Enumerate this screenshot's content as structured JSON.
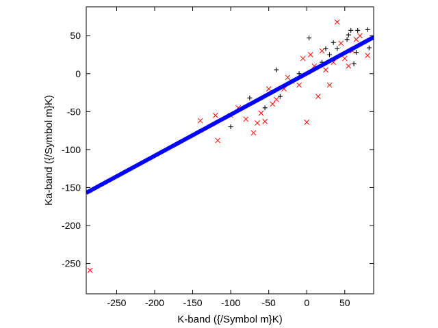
{
  "chart_data": {
    "type": "scatter",
    "title": "",
    "xlabel": "K-band ({/Symbol m}K)",
    "ylabel": "Ka-band ({/Symbol m}K)",
    "xlim": [
      -290,
      88
    ],
    "ylim": [
      -290,
      88
    ],
    "xticks": [
      -250,
      -200,
      -150,
      -100,
      -50,
      0,
      50
    ],
    "yticks": [
      -250,
      -200,
      -150,
      -100,
      -50,
      0,
      50
    ],
    "xtick_labels": [
      "-250",
      "-200",
      "-150",
      "-100",
      "-50",
      "0",
      "50"
    ],
    "ytick_labels": [
      "-250",
      "-200",
      "-150",
      "-100",
      "-50",
      "0",
      "50"
    ],
    "grid": false,
    "legend": "none",
    "series": [
      {
        "marker": "plus",
        "color": "#000000",
        "points": [
          [
            3,
            47
          ],
          [
            58,
            57
          ],
          [
            55,
            51
          ],
          [
            67,
            57
          ],
          [
            35,
            41
          ],
          [
            53,
            45
          ],
          [
            80,
            58
          ],
          [
            25,
            33
          ],
          [
            82,
            34
          ],
          [
            65,
            28
          ],
          [
            62,
            13
          ],
          [
            -40,
            5
          ],
          [
            -75,
            -32
          ],
          [
            -55,
            -45
          ],
          [
            -100,
            -70
          ],
          [
            -35,
            -30
          ],
          [
            20,
            15
          ],
          [
            40,
            33
          ],
          [
            -10,
            0
          ],
          [
            30,
            25
          ]
        ]
      },
      {
        "marker": "x",
        "color": "#ff0000",
        "points": [
          [
            -285,
            -259
          ],
          [
            -117,
            -88
          ],
          [
            -70,
            -78
          ],
          [
            -55,
            -63
          ],
          [
            0,
            -64
          ],
          [
            -140,
            -62
          ],
          [
            40,
            68
          ],
          [
            -50,
            -20
          ],
          [
            -20,
            -10
          ],
          [
            10,
            10
          ],
          [
            35,
            15
          ],
          [
            60,
            30
          ],
          [
            80,
            24
          ],
          [
            -60,
            -52
          ],
          [
            -40,
            -34
          ],
          [
            -80,
            -60
          ],
          [
            -100,
            -55
          ],
          [
            -5,
            20
          ],
          [
            25,
            5
          ],
          [
            45,
            40
          ],
          [
            -30,
            -20
          ],
          [
            15,
            -30
          ],
          [
            -10,
            -15
          ],
          [
            55,
            10
          ],
          [
            70,
            50
          ],
          [
            -120,
            -55
          ],
          [
            -90,
            -45
          ],
          [
            5,
            25
          ],
          [
            30,
            -15
          ],
          [
            50,
            20
          ],
          [
            -25,
            -5
          ],
          [
            -45,
            -40
          ],
          [
            65,
            45
          ],
          [
            20,
            30
          ],
          [
            -65,
            -65
          ]
        ]
      }
    ],
    "fit_line": {
      "color": "#0000ff",
      "x": [
        -290,
        88
      ],
      "y": [
        -157,
        48
      ]
    }
  }
}
